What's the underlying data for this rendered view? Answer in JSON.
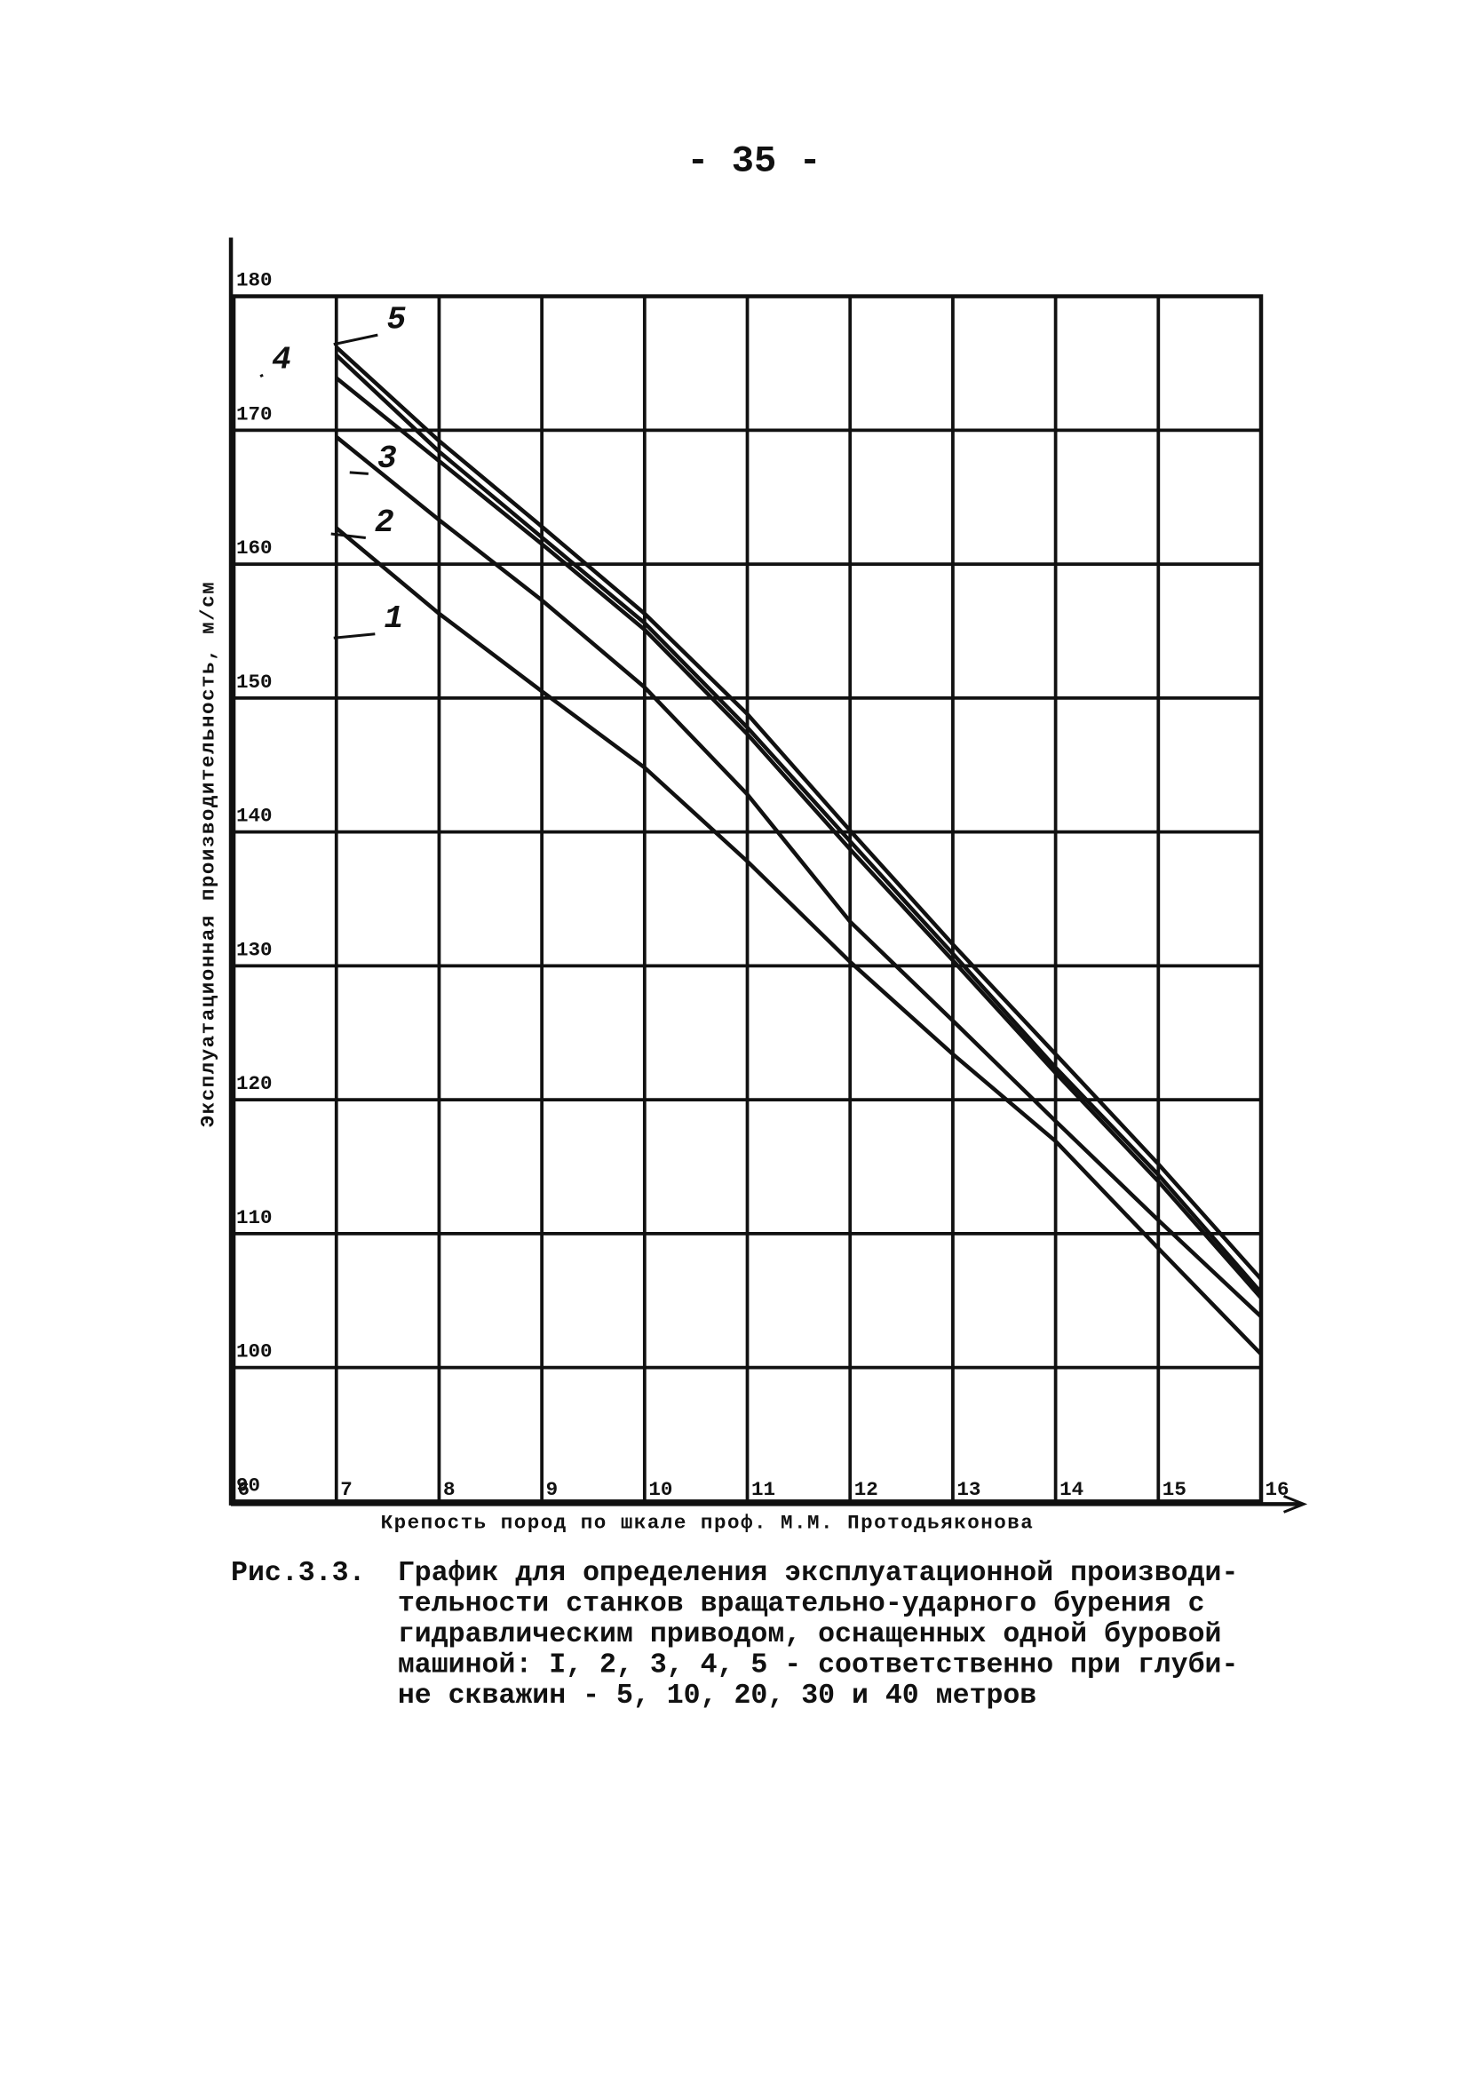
{
  "page_number": "- 35 -",
  "caption": {
    "label": "Рис.3.3.",
    "lines": [
      "График для определения эксплуатационной производи-",
      "тельности станков вращательно-ударного бурения с",
      "гидравлическим приводом, оснащенных одной буровой",
      "машиной: I, 2, 3, 4, 5 - соответственно при глуби-",
      "не скважин - 5, 10, 20, 30 и 40 метров"
    ]
  },
  "chart_data": {
    "type": "line",
    "x_label": "Крепость пород по шкале проф. М.М. Протодьяконова",
    "y_label": "Эксплуатационная производительность, м/см",
    "x": [
      7,
      8,
      9,
      10,
      11,
      12,
      13,
      14,
      15,
      16
    ],
    "xlim": [
      6,
      16
    ],
    "xticks": [
      6,
      7,
      8,
      9,
      10,
      11,
      12,
      13,
      14,
      15,
      16
    ],
    "ylim": [
      90,
      180
    ],
    "yticks": [
      90,
      100,
      110,
      120,
      130,
      140,
      150,
      160,
      170,
      180
    ],
    "grid": true,
    "series": [
      {
        "name": "1",
        "color": "#111111",
        "values": [
          162.7,
          156.3,
          150.5,
          144.8,
          137.8,
          130.3,
          123.4,
          116.9,
          108.9,
          101
        ]
      },
      {
        "name": "2",
        "color": "#111111",
        "values": [
          169.5,
          163.3,
          157.3,
          150.8,
          142.8,
          133.3,
          125.9,
          118.4,
          111,
          103.8
        ]
      },
      {
        "name": "3",
        "color": "#111111",
        "values": [
          173.9,
          167.7,
          161.5,
          155.1,
          147.3,
          138.7,
          130.4,
          122,
          113.9,
          105.2
        ]
      },
      {
        "name": "4",
        "color": "#111111",
        "values": [
          175.6,
          168.4,
          162,
          155.6,
          147.8,
          139.3,
          130.9,
          122.4,
          114.4,
          105.6
        ]
      },
      {
        "name": "5",
        "color": "#111111",
        "values": [
          176.2,
          169.2,
          162.8,
          156.3,
          148.8,
          140.1,
          131.6,
          123.4,
          115.2,
          106.6
        ]
      }
    ]
  }
}
